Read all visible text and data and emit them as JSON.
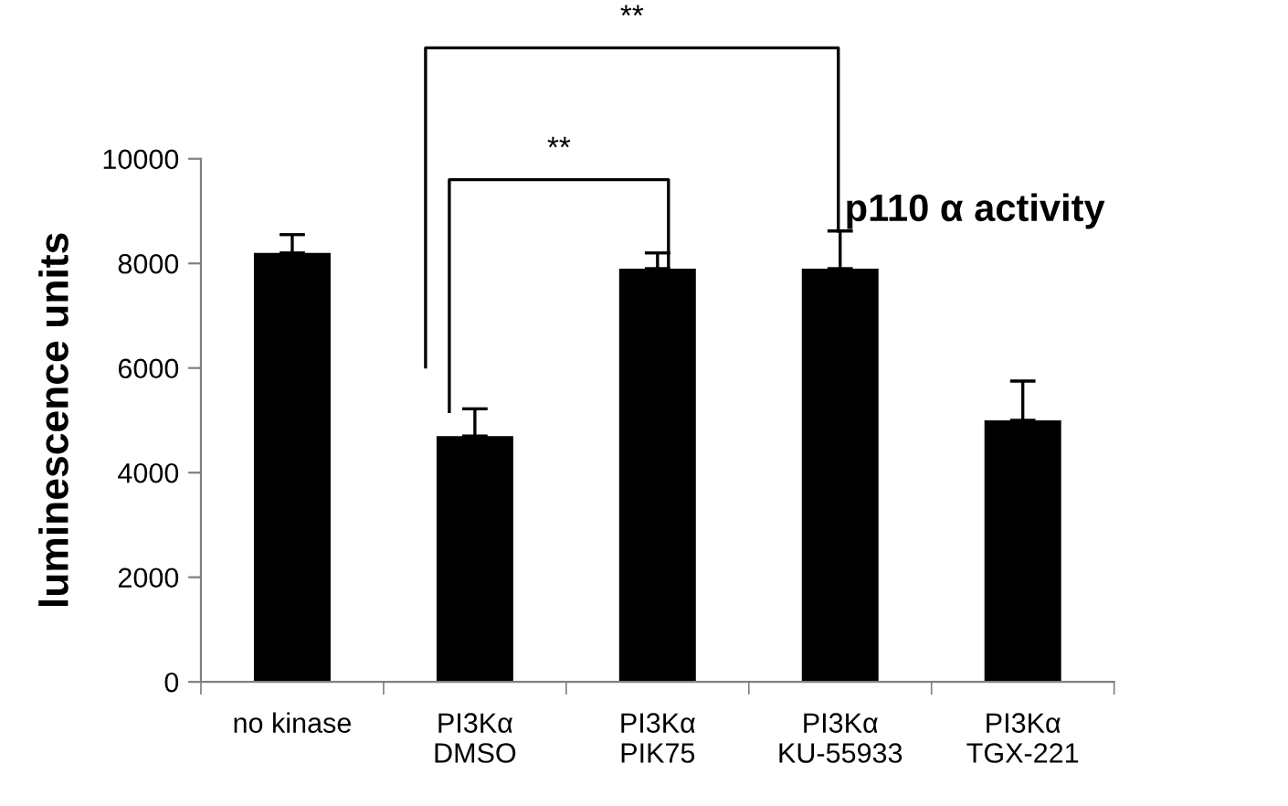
{
  "chart_data": {
    "type": "bar",
    "title": "p110 α activity",
    "ylabel": "luminescence units",
    "categories": [
      "no kinase",
      "PI3Kα\nDMSO",
      "PI3Kα\nPIK75",
      "PI3Kα\nKU-55933",
      "PI3Kα\nTGX-221"
    ],
    "values": [
      8200,
      4700,
      7900,
      7900,
      5000
    ],
    "errors": [
      [
        8200,
        8550
      ],
      [
        4700,
        5220
      ],
      [
        7900,
        8200
      ],
      [
        7900,
        8620
      ],
      [
        5000,
        5750
      ]
    ],
    "color": "#000000",
    "ylim": [
      0,
      10000
    ],
    "yticks": [
      0,
      2000,
      4000,
      6000,
      8000,
      10000
    ],
    "grid": false,
    "legend": false,
    "annotations": [
      "**",
      "**"
    ]
  }
}
